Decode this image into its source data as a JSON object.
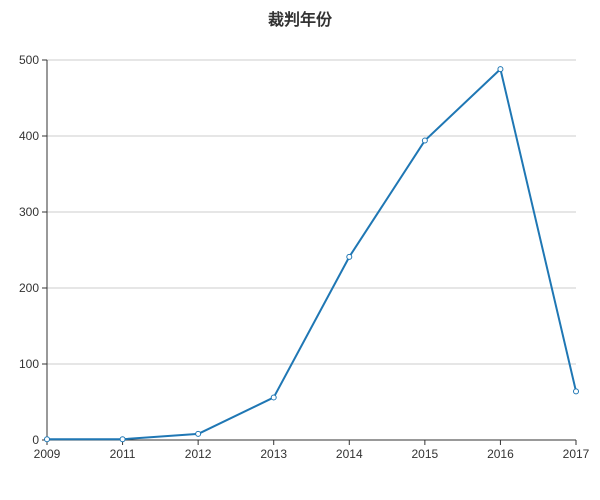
{
  "chart_data": {
    "type": "line",
    "title": "裁判年份",
    "xlabel": "",
    "ylabel": "",
    "x": [
      "2009",
      "2011",
      "2012",
      "2013",
      "2014",
      "2015",
      "2016",
      "2017"
    ],
    "series": [
      {
        "values": [
          1,
          1,
          8,
          56,
          241,
          394,
          488,
          64
        ]
      }
    ],
    "ylim": [
      0,
      500
    ],
    "yticks": [
      0,
      100,
      200,
      300,
      400,
      500
    ],
    "grid": true,
    "legend": "none",
    "colors": {
      "line": "#1f77b4",
      "grid": "#cccccc",
      "axis": "#333333",
      "marker_fill": "#ffffff"
    }
  }
}
